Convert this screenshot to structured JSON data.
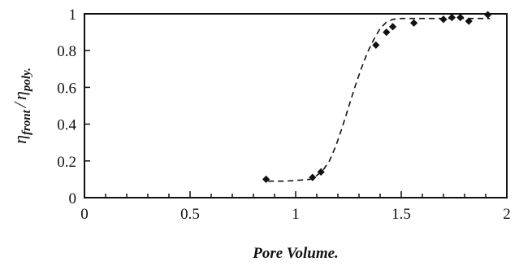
{
  "chart_data": {
    "type": "scatter",
    "xlabel": "Pore Volume.",
    "ylabel": {
      "numerator_symbol": "η",
      "numerator_subscript": "front",
      "separator": "/",
      "denominator_symbol": "η",
      "denominator_subscript": "poly."
    },
    "xlim": [
      0,
      2
    ],
    "ylim": [
      0,
      1
    ],
    "x_ticks": [
      0,
      0.5,
      1,
      1.5,
      2
    ],
    "x_tick_labels": [
      "0",
      "0.5",
      "1",
      "1.5",
      "2"
    ],
    "x_minor_step": 0.1,
    "y_ticks": [
      0,
      0.2,
      0.4,
      0.6,
      0.8,
      1
    ],
    "y_tick_labels": [
      "0",
      "0.2",
      "0.4",
      "0.6",
      "0.8",
      "1"
    ],
    "grid": false,
    "series": [
      {
        "style": "points",
        "marker": "diamond",
        "color": "#111111",
        "x": [
          0.86,
          1.08,
          1.12,
          1.38,
          1.43,
          1.46,
          1.56,
          1.7,
          1.74,
          1.78,
          1.82,
          1.91
        ],
        "y": [
          0.1,
          0.11,
          0.14,
          0.83,
          0.9,
          0.93,
          0.95,
          0.97,
          0.98,
          0.98,
          0.96,
          0.995
        ]
      },
      {
        "style": "dashed",
        "color": "#111111",
        "x": [
          0.87,
          0.95,
          1.02,
          1.07,
          1.1,
          1.13,
          1.16,
          1.19,
          1.22,
          1.25,
          1.28,
          1.31,
          1.34,
          1.37,
          1.4,
          1.43,
          1.46,
          1.5,
          1.6,
          1.75,
          1.92
        ],
        "y": [
          0.09,
          0.09,
          0.095,
          0.1,
          0.12,
          0.15,
          0.2,
          0.28,
          0.38,
          0.49,
          0.6,
          0.7,
          0.79,
          0.86,
          0.92,
          0.955,
          0.97,
          0.975,
          0.975,
          0.975,
          0.975
        ]
      }
    ]
  }
}
